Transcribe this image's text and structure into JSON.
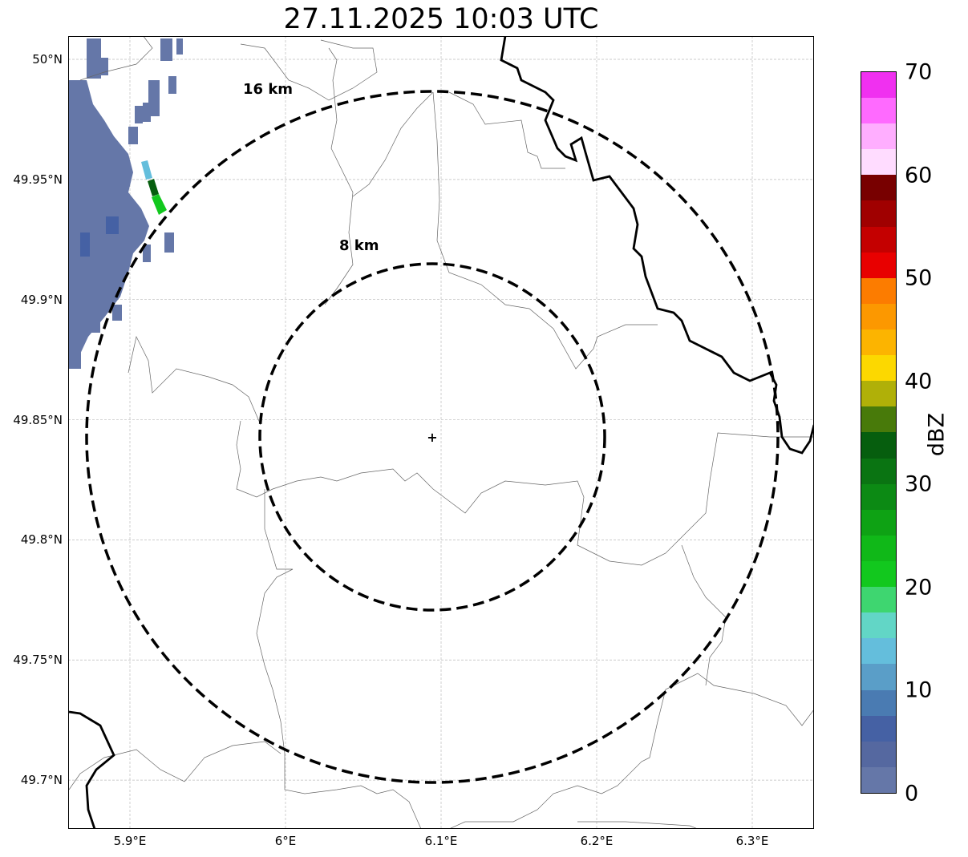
{
  "chart_data": {
    "type": "heatmap",
    "title": "27.11.2025 10:03 UTC",
    "xlim": [
      5.86,
      6.34
    ],
    "ylim": [
      49.68,
      50.01
    ],
    "x_ticks": [
      {
        "v": 5.9,
        "label": "5.9°E"
      },
      {
        "v": 6.0,
        "label": "6°E"
      },
      {
        "v": 6.1,
        "label": "6.1°E"
      },
      {
        "v": 6.2,
        "label": "6.2°E"
      },
      {
        "v": 6.3,
        "label": "6.3°E"
      }
    ],
    "y_ticks": [
      {
        "v": 50.0,
        "label": "50°N"
      },
      {
        "v": 49.95,
        "label": "49.95°N"
      },
      {
        "v": 49.9,
        "label": "49.9°N"
      },
      {
        "v": 49.85,
        "label": "49.85°N"
      },
      {
        "v": 49.8,
        "label": "49.8°N"
      },
      {
        "v": 49.75,
        "label": "49.75°N"
      },
      {
        "v": 49.7,
        "label": "49.7°N"
      }
    ],
    "grid": true,
    "radar_center": {
      "lon": 6.094,
      "lat": 49.843
    },
    "rings": [
      {
        "label": "8 km",
        "km": 8
      },
      {
        "label": "16 km",
        "km": 16
      }
    ],
    "colorbar": {
      "label": "dBZ",
      "range": [
        0,
        70
      ],
      "step": 2.5,
      "ticks": [
        "0",
        "10",
        "20",
        "30",
        "40",
        "50",
        "60",
        "70"
      ],
      "colors": [
        "#6577a8",
        "#5568a0",
        "#4561a4",
        "#4a7bb2",
        "#5a9ec8",
        "#64bedc",
        "#62d6c6",
        "#3ed670",
        "#12c81e",
        "#10b818",
        "#0ea214",
        "#0c8a14",
        "#0a7412",
        "#065e0e",
        "#487a0a",
        "#b0b008",
        "#fcd800",
        "#fcb400",
        "#fc9800",
        "#fc7c00",
        "#e80000",
        "#c40000",
        "#a00000",
        "#780000",
        "#ffdcff",
        "#ffaeff",
        "#ff6aff",
        "#f030f0"
      ]
    },
    "precip_summary": "Light echoes 0-5 dBZ in NW corner, small cell up to ~22 dBZ near 5.92°E 49.94°N"
  }
}
